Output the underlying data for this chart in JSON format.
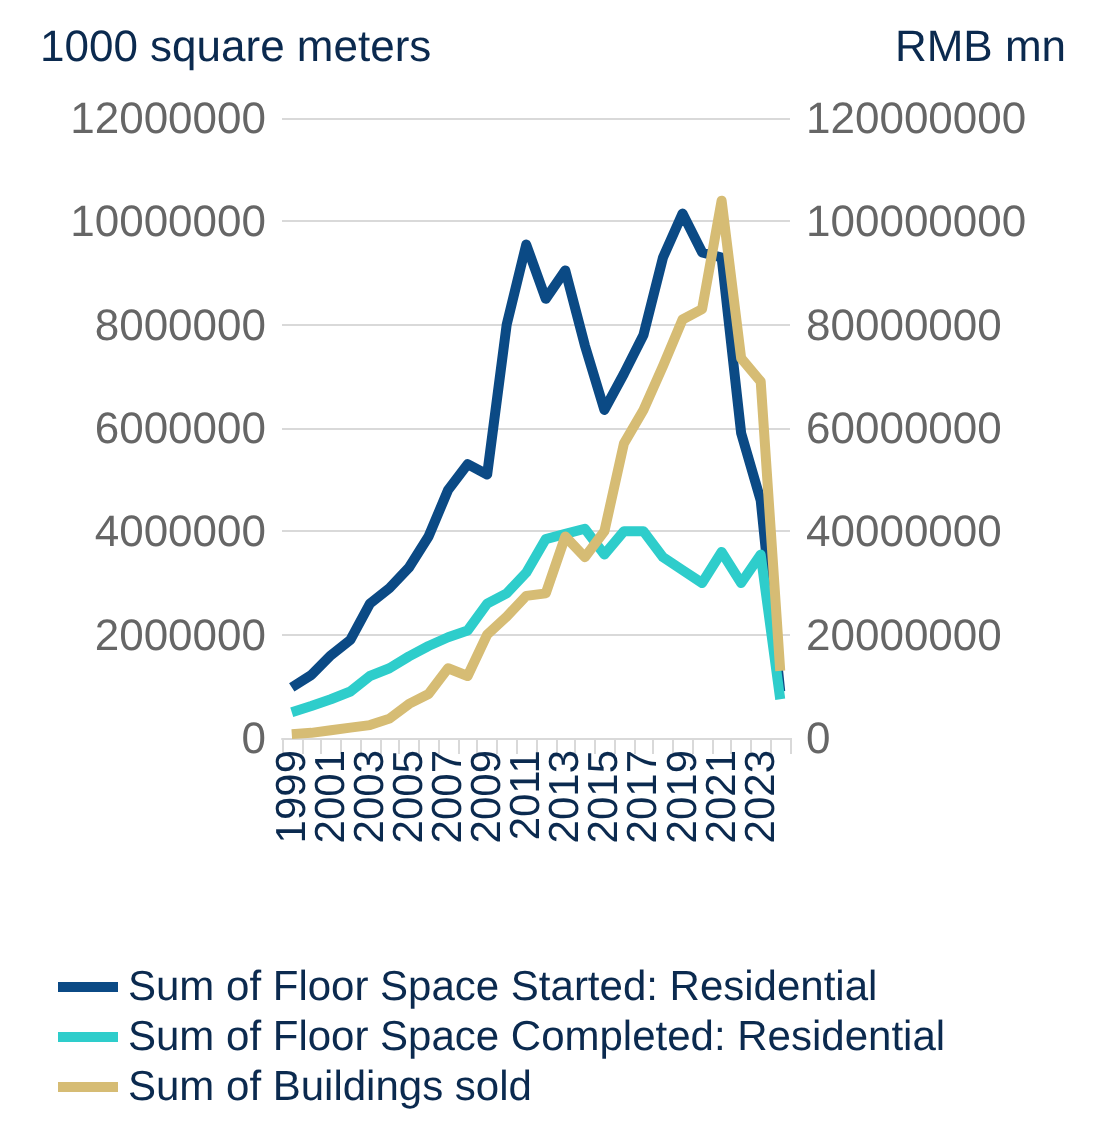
{
  "chart_data": {
    "type": "line",
    "ylabel": "1000 square meters",
    "y2label": "RMB mn",
    "categories": [
      "1999",
      null,
      "2001",
      null,
      "2003",
      null,
      "2005",
      null,
      "2007",
      null,
      "2009",
      null,
      "2011",
      null,
      "2013",
      null,
      "2015",
      null,
      "2017",
      null,
      "2019",
      null,
      "2021",
      null,
      "2023",
      null
    ],
    "series": [
      {
        "name": "Sum of Floor Space Started: Residential",
        "color": "#0b4a85",
        "values": [
          980000,
          1220000,
          1600000,
          1900000,
          2600000,
          2900000,
          3300000,
          3900000,
          4800000,
          5300000,
          5100000,
          8000000,
          9550000,
          8500000,
          9050000,
          7600000,
          6350000,
          7050000,
          7800000,
          9300000,
          10150000,
          9400000,
          9300000,
          5900000,
          4600000,
          900000
        ]
      },
      {
        "name": "Sum of Floor Space Completed: Residential",
        "color": "#2ecdcb",
        "values": [
          500000,
          620000,
          750000,
          900000,
          1200000,
          1350000,
          1580000,
          1780000,
          1950000,
          2080000,
          2600000,
          2800000,
          3200000,
          3850000,
          3950000,
          4050000,
          3550000,
          4000000,
          4000000,
          3500000,
          3250000,
          3000000,
          3600000,
          3000000,
          3550000,
          750000
        ]
      },
      {
        "name": "Sum of Buildings sold",
        "color": "#d6bc74",
        "axis": "y2",
        "values": [
          750000,
          1000000,
          1500000,
          2000000,
          2500000,
          3750000,
          6600000,
          8500000,
          13500000,
          12000000,
          20000000,
          23500000,
          27500000,
          28000000,
          39000000,
          35000000,
          40000000,
          57000000,
          63500000,
          72000000,
          81000000,
          83000000,
          104000000,
          73500000,
          69000000,
          13000000
        ]
      }
    ],
    "ylim": [
      0,
      12000000
    ],
    "yticks": [
      0,
      2000000,
      4000000,
      6000000,
      8000000,
      10000000,
      12000000
    ],
    "y2lim": [
      0,
      120000000
    ],
    "y2ticks": [
      0,
      20000000,
      40000000,
      60000000,
      80000000,
      100000000,
      120000000
    ],
    "grid": "y",
    "legend": "bottom",
    "marker": "none",
    "line_style": "solid"
  }
}
